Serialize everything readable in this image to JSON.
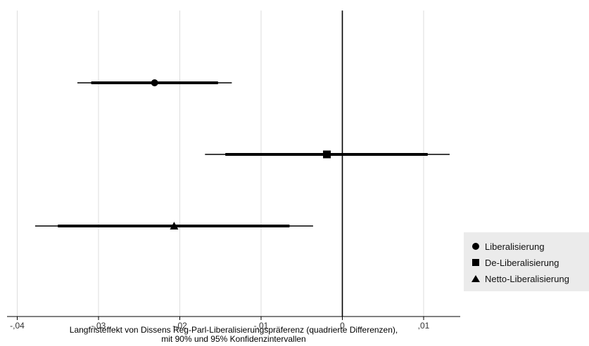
{
  "chart_data": {
    "type": "scatter",
    "subtype": "coefficient-plot",
    "title": "",
    "xlabel": "Langfristeffekt von Dissens Reg-Parl-Liberalisierungspräferenz (quadrierte Differenzen),",
    "xlabel_line2": "mit 90% und 95% Konfidenzintervallen",
    "ylabel": "",
    "xlim": [
      -0.04,
      0.0145
    ],
    "x_ticks": [
      -0.04,
      -0.03,
      -0.02,
      -0.01,
      0,
      0.01
    ],
    "x_tick_labels": [
      "-,04",
      "-,03",
      "-,02",
      "-,01",
      "0",
      ",01"
    ],
    "grid": "vertical",
    "reference_line_x": 0,
    "legend_position": "bottom-right",
    "series": [
      {
        "name": "Liberalisierung",
        "marker": "circle",
        "estimate": -0.0231,
        "ci90": [
          -0.0309,
          -0.0153
        ],
        "ci95": [
          -0.0326,
          -0.0136
        ]
      },
      {
        "name": "De-Liberalisierung",
        "marker": "square",
        "estimate": -0.0019,
        "ci90": [
          -0.0144,
          0.0105
        ],
        "ci95": [
          -0.0169,
          0.0132
        ]
      },
      {
        "name": "Netto-Liberalisierung",
        "marker": "triangle",
        "estimate": -0.0207,
        "ci90": [
          -0.035,
          -0.0065
        ],
        "ci95": [
          -0.0378,
          -0.0036
        ]
      }
    ],
    "colors": {
      "marks": "#000000",
      "grid": "#dddddd",
      "legend_bg": "#ebebeb"
    }
  }
}
